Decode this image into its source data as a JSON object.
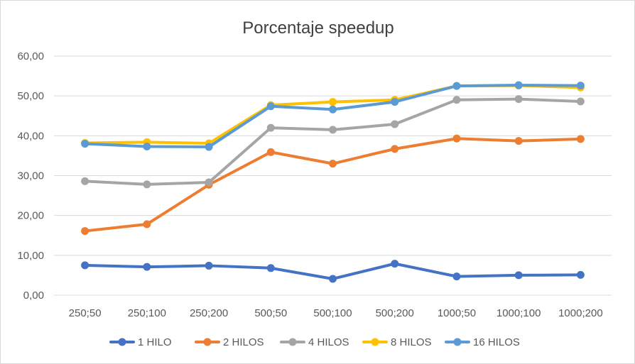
{
  "chart_data": {
    "type": "line",
    "title": "Porcentaje speedup",
    "xlabel": "",
    "ylabel": "",
    "ylim": [
      0,
      60
    ],
    "y_ticks": [
      0,
      10,
      20,
      30,
      40,
      50,
      60
    ],
    "y_tick_labels": [
      "0,00",
      "10,00",
      "20,00",
      "30,00",
      "40,00",
      "50,00",
      "60,00"
    ],
    "categories": [
      "250;50",
      "250;100",
      "250;200",
      "500;50",
      "500;100",
      "500;200",
      "1000;50",
      "1000;100",
      "1000;200"
    ],
    "grid": true,
    "legend_position": "bottom",
    "series": [
      {
        "name": "1 HILO",
        "color": "#4472C4",
        "values": [
          7.5,
          7.1,
          7.4,
          6.8,
          4.1,
          7.9,
          4.7,
          5.0,
          5.1
        ]
      },
      {
        "name": "2 HILOS",
        "color": "#ED7D31",
        "values": [
          16.1,
          17.8,
          27.7,
          35.9,
          33.0,
          36.7,
          39.3,
          38.7,
          39.2
        ]
      },
      {
        "name": "4 HILOS",
        "color": "#A5A5A5",
        "values": [
          28.6,
          27.8,
          28.3,
          42.0,
          41.5,
          42.9,
          49.0,
          49.2,
          48.6
        ]
      },
      {
        "name": "8 HILOS",
        "color": "#FFC000",
        "values": [
          38.2,
          38.4,
          38.1,
          47.7,
          48.5,
          49.0,
          52.5,
          52.6,
          52.1
        ]
      },
      {
        "name": "16 HILOS",
        "color": "#5B9BD5",
        "values": [
          38.0,
          37.3,
          37.2,
          47.4,
          46.6,
          48.5,
          52.5,
          52.7,
          52.6
        ]
      }
    ]
  }
}
